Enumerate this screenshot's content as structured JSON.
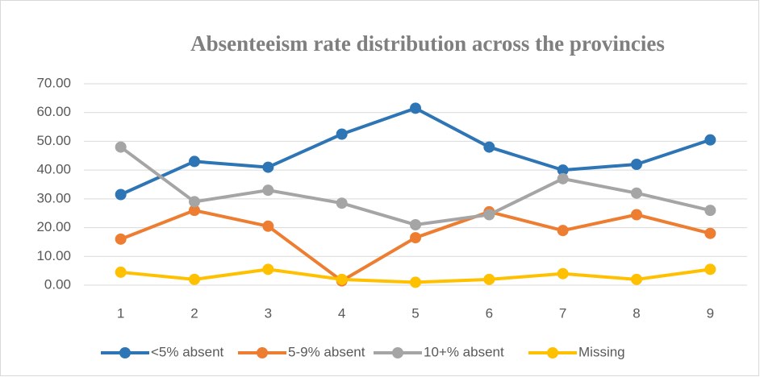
{
  "chart_data": {
    "type": "line",
    "title": "Absenteeism rate distribution across the provincies",
    "categories": [
      "1",
      "2",
      "3",
      "4",
      "5",
      "6",
      "7",
      "8",
      "9"
    ],
    "series": [
      {
        "name": "<5% absent",
        "color": "#2e75b6",
        "values": [
          31.5,
          43,
          41,
          52.5,
          61.5,
          48,
          40,
          42,
          50.5
        ]
      },
      {
        "name": "5-9% absent",
        "color": "#ed7d31",
        "values": [
          16,
          26,
          20.5,
          1.5,
          16.5,
          25.5,
          19,
          24.5,
          18
        ]
      },
      {
        "name": "10+% absent",
        "color": "#a5a5a5",
        "values": [
          48,
          29,
          33,
          28.5,
          21,
          24.5,
          37,
          32,
          26
        ]
      },
      {
        "name": "Missing",
        "color": "#ffc000",
        "values": [
          4.5,
          2,
          5.5,
          2,
          1,
          2,
          4,
          2,
          5.5
        ]
      }
    ],
    "ylim": [
      0,
      70
    ],
    "yticks": [
      {
        "value": 0,
        "label": "0.00"
      },
      {
        "value": 10,
        "label": "10.00"
      },
      {
        "value": 20,
        "label": "20.00"
      },
      {
        "value": 30,
        "label": "30.00"
      },
      {
        "value": 40,
        "label": "40.00"
      },
      {
        "value": 50,
        "label": "50.00"
      },
      {
        "value": 60,
        "label": "60.00"
      },
      {
        "value": 70,
        "label": "70.00"
      }
    ],
    "grid": true,
    "legend": "bottom"
  }
}
